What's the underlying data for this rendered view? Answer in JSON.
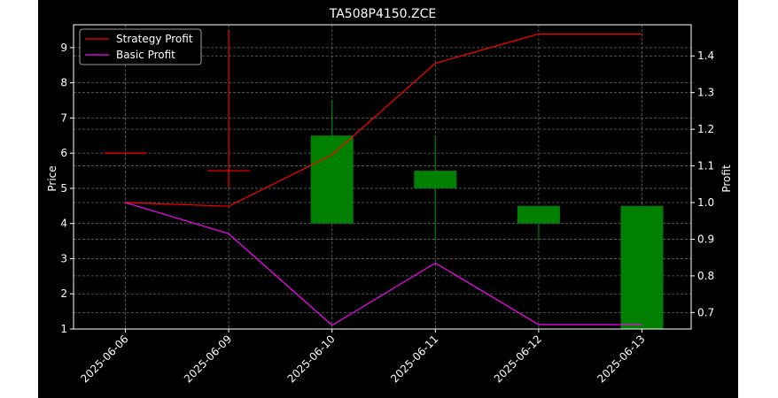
{
  "chart_data": {
    "type": "candlestick+line",
    "title": "TA508P4150.ZCE",
    "categories": [
      "2025-06-06",
      "2025-06-09",
      "2025-06-10",
      "2025-06-11",
      "2025-06-12",
      "2025-06-13"
    ],
    "candles": [
      {
        "date": "2025-06-06",
        "open": 6.0,
        "close": 6.0,
        "high": 6.0,
        "low": 6.0
      },
      {
        "date": "2025-06-09",
        "open": 5.5,
        "close": 5.5,
        "high": 9.5,
        "low": 5.0
      },
      {
        "date": "2025-06-10",
        "open": 4.0,
        "close": 6.5,
        "high": 7.5,
        "low": 4.0
      },
      {
        "date": "2025-06-11",
        "open": 5.5,
        "close": 5.0,
        "high": 6.5,
        "low": 3.5
      },
      {
        "date": "2025-06-12",
        "open": 4.5,
        "close": 4.0,
        "high": 4.5,
        "low": 3.5
      },
      {
        "date": "2025-06-13",
        "open": 4.5,
        "close": 1.0,
        "high": 4.5,
        "low": 1.0
      }
    ],
    "left_axis": {
      "label": "Price",
      "ylim": [
        1.0,
        9.65
      ],
      "ticks": [
        1,
        2,
        3,
        4,
        5,
        6,
        7,
        8,
        9
      ]
    },
    "right_axis": {
      "label": "Profit",
      "ylim": [
        0.655,
        1.485
      ],
      "ticks": [
        0.7,
        0.8,
        0.9,
        1.0,
        1.1,
        1.2,
        1.3,
        1.4
      ]
    },
    "series": [
      {
        "name": "Strategy Profit",
        "axis": "right",
        "color": "#ff0000",
        "values": [
          1.0,
          0.99,
          1.13,
          1.38,
          1.46,
          1.46
        ]
      },
      {
        "name": "Basic Profit",
        "axis": "right",
        "color": "#ff00ff",
        "values": [
          1.0,
          0.915,
          0.665,
          0.835,
          0.667,
          0.667
        ]
      }
    ],
    "up_color": "#008000",
    "down_color": "#008000",
    "neutral_color": "#ff0000",
    "grid": true,
    "legend_position": "top-left"
  }
}
